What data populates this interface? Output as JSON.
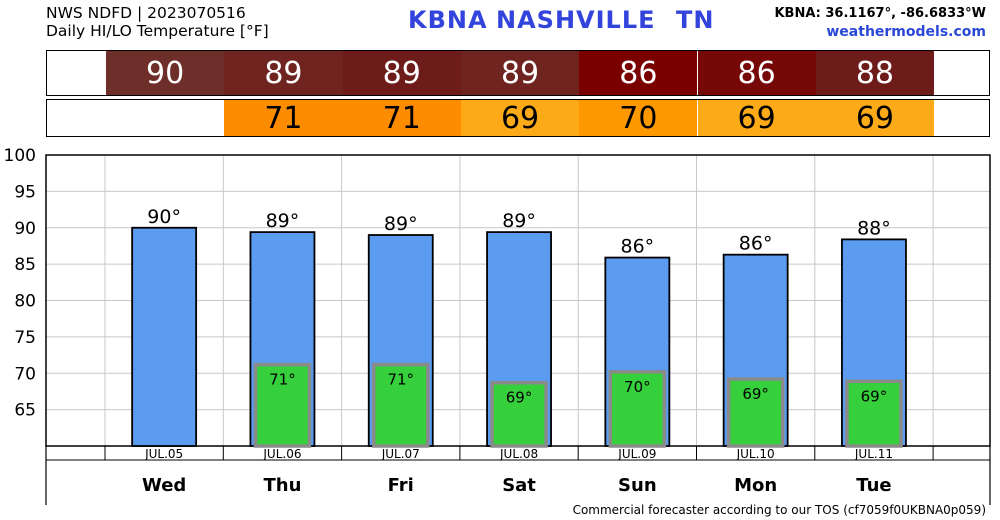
{
  "header": {
    "line1": "NWS NDFD | 2023070516",
    "line2": "Daily HI/LO Temperature [°F]",
    "station_id": "KBNA",
    "station_city": "NASHVILLE",
    "station_state": "TN",
    "coords": "KBNA: 36.1167°, -86.6833°W",
    "site": "weathermodels.com"
  },
  "footer": {
    "text": "Commercial forecaster according to our TOS (cf7059f0UKBNA0p059)"
  },
  "strips": {
    "hi": [
      {
        "text": "90",
        "color": "#6e2f2a"
      },
      {
        "text": "89",
        "color": "#702420"
      },
      {
        "text": "89",
        "color": "#6e1c1a"
      },
      {
        "text": "89",
        "color": "#702420"
      },
      {
        "text": "86",
        "color": "#7a0000"
      },
      {
        "text": "86",
        "color": "#760808"
      },
      {
        "text": "88",
        "color": "#6e1c1a"
      }
    ],
    "lo": [
      {
        "text": "",
        "color": "#ffffff"
      },
      {
        "text": "71",
        "color": "#fd8c00"
      },
      {
        "text": "71",
        "color": "#fd8c00"
      },
      {
        "text": "69",
        "color": "#fdaa18"
      },
      {
        "text": "70",
        "color": "#fd9800"
      },
      {
        "text": "69",
        "color": "#fdaa18"
      },
      {
        "text": "69",
        "color": "#fdaa18"
      }
    ]
  },
  "chart_data": {
    "type": "bar",
    "categories": [
      "Wed",
      "Thu",
      "Fri",
      "Sat",
      "Sun",
      "Mon",
      "Tue"
    ],
    "dates": [
      "JUL.05",
      "JUL.06",
      "JUL.07",
      "JUL.08",
      "JUL.09",
      "JUL.10",
      "JUL.11"
    ],
    "series": [
      {
        "values": [
          90,
          89.4,
          89,
          89.4,
          85.9,
          86.3,
          88.4
        ],
        "labels": [
          "90°",
          "89°",
          "89°",
          "89°",
          "86°",
          "86°",
          "88°"
        ],
        "color": "#5b9cf0"
      },
      {
        "values": [
          null,
          71.2,
          71.2,
          68.7,
          70.2,
          69.2,
          68.9
        ],
        "labels": [
          "",
          "71°",
          "71°",
          "69°",
          "70°",
          "69°",
          "69°"
        ],
        "color": "#36d03c"
      }
    ],
    "yticks": [
      "65",
      "70",
      "75",
      "80",
      "85",
      "90",
      "95",
      "100"
    ],
    "ylim": [
      60,
      100
    ],
    "grid": true
  }
}
